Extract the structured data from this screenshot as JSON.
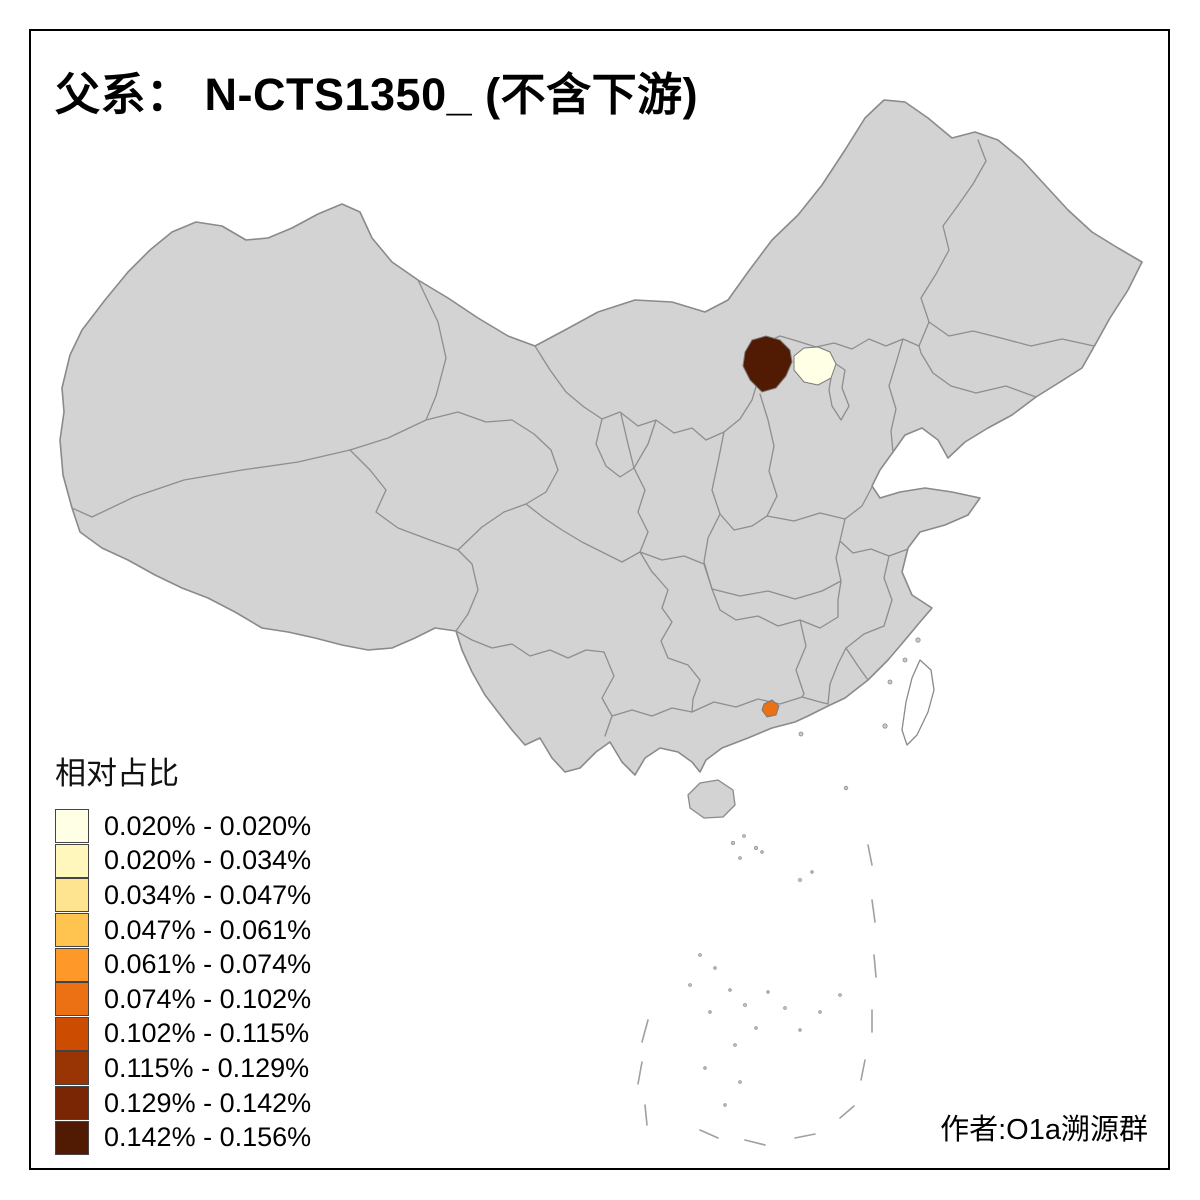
{
  "title": "父系： N-CTS1350_ (不含下游)",
  "credit": "作者:O1a溯源群",
  "legend": {
    "title": "相对占比",
    "entries": [
      {
        "color": "#FFFFE5",
        "label": "0.020% - 0.020%"
      },
      {
        "color": "#FFF7BC",
        "label": "0.020% - 0.034%"
      },
      {
        "color": "#FEE391",
        "label": "0.034% - 0.047%"
      },
      {
        "color": "#FEC44F",
        "label": "0.047% - 0.061%"
      },
      {
        "color": "#FE9929",
        "label": "0.061% - 0.074%"
      },
      {
        "color": "#EC7014",
        "label": "0.074% - 0.102%"
      },
      {
        "color": "#CC4C02",
        "label": "0.102% - 0.115%"
      },
      {
        "color": "#993404",
        "label": "0.115% - 0.129%"
      },
      {
        "color": "#7A2604",
        "label": "0.129% - 0.142%"
      },
      {
        "color": "#511A03",
        "label": "0.142% - 0.156%"
      }
    ]
  },
  "map": {
    "base_fill": "#D3D3D3",
    "no_data_fill": "#FFFFFF",
    "border_color": "#8E8E8E",
    "highlights": [
      {
        "id": "north-region-dark",
        "color": "#511A03",
        "range": "0.142% - 0.156%"
      },
      {
        "id": "north-region-light",
        "color": "#FFFFE5",
        "range": "0.020% - 0.020%"
      },
      {
        "id": "south-region-orange",
        "color": "#EC7014",
        "range": "0.074% - 0.102%"
      }
    ]
  }
}
